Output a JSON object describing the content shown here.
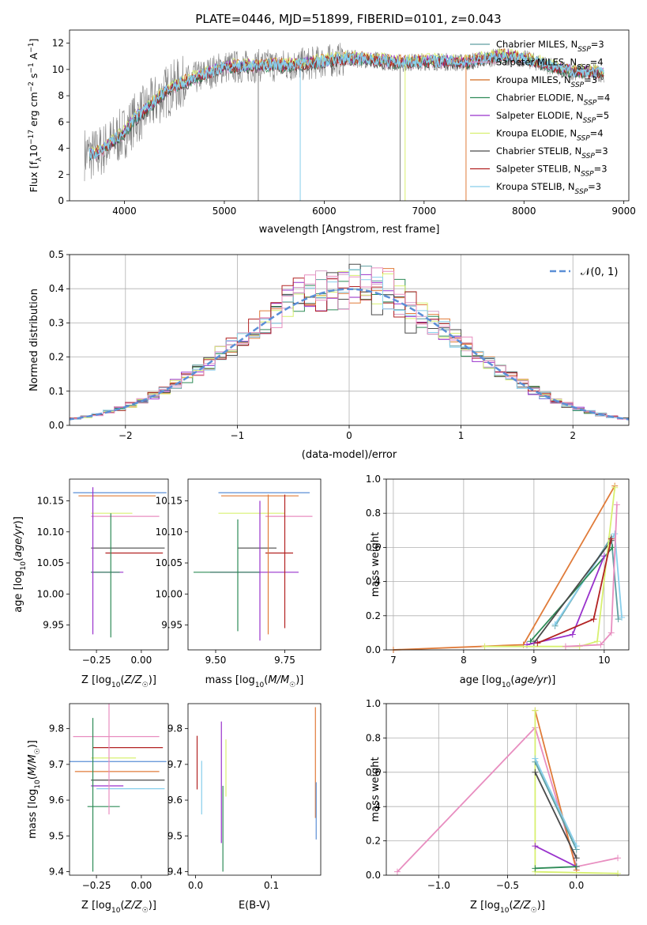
{
  "figure_title": "PLATE=0446, MJD=51899, FIBERID=0101, z=0.043",
  "chart_data": [
    {
      "id": "spectrum",
      "type": "line",
      "title": "PLATE=0446, MJD=51899, FIBERID=0101, z=0.043",
      "xlabel": "wavelength [Angstrom, rest frame]",
      "ylabel": "Flux [f_λ 10^-17 erg cm^-2 s^-1 A^-1]",
      "xlim": [
        3450,
        9050
      ],
      "ylim": [
        0,
        13
      ],
      "xticks": [
        4000,
        5000,
        6000,
        7000,
        8000,
        9000
      ],
      "yticks": [
        0,
        2,
        4,
        6,
        8,
        10,
        12
      ],
      "grid": false,
      "legend_position": "right",
      "data_points": {
        "wavelength": [
          3600,
          3700,
          3800,
          3900,
          4000,
          4100,
          4200,
          4300,
          4400,
          4500,
          4600,
          4700,
          4800,
          4900,
          5000,
          5200,
          5400,
          5600,
          5800,
          6000,
          6200,
          6400,
          6600,
          6800,
          7000,
          7200,
          7400,
          7600,
          7800,
          8000,
          8200,
          8400,
          8600,
          8800
        ],
        "flux": [
          3.6,
          3.5,
          4.0,
          4.6,
          5.2,
          6.2,
          6.8,
          7.5,
          8.2,
          8.7,
          9.0,
          9.3,
          9.6,
          9.9,
          10.2,
          10.2,
          10.3,
          10.3,
          10.4,
          10.6,
          10.8,
          10.8,
          10.6,
          10.5,
          10.6,
          10.6,
          10.5,
          10.8,
          11.0,
          10.8,
          10.4,
          9.9,
          9.8,
          9.7
        ]
      },
      "series": [
        {
          "name": "Chabrier MILES, N_SSP=3",
          "color": "#5f9ea0"
        },
        {
          "name": "Salpeter MILES, N_SSP=4",
          "color": "#d8a0c8"
        },
        {
          "name": "Kroupa MILES, N_SSP=3",
          "color": "#d2691e"
        },
        {
          "name": "Chabrier ELODIE, N_SSP=4",
          "color": "#2e8b57"
        },
        {
          "name": "Salpeter ELODIE, N_SSP=5",
          "color": "#9932cc"
        },
        {
          "name": "Kroupa ELODIE, N_SSP=4",
          "color": "#d8f070"
        },
        {
          "name": "Chabrier STELIB, N_SSP=3",
          "color": "#4a4a4a"
        },
        {
          "name": "Salpeter STELIB, N_SSP=3",
          "color": "#b22222"
        },
        {
          "name": "Kroupa STELIB, N_SSP=3",
          "color": "#87ceeb"
        }
      ]
    },
    {
      "id": "residuals",
      "type": "line",
      "xlabel": "(data-model)/error",
      "ylabel": "Normed distribution",
      "xlim": [
        -2.5,
        2.5
      ],
      "ylim": [
        0,
        0.5
      ],
      "xticks": [
        -2,
        -1,
        0,
        1,
        2
      ],
      "yticks": [
        0.0,
        0.1,
        0.2,
        0.3,
        0.4,
        0.5
      ],
      "grid": true,
      "legend_position": "top-right",
      "gaussian_label": "𝒩(0, 1)",
      "gaussian_color": "#5b8fd6",
      "bin_width": 0.1
    },
    {
      "id": "age-z",
      "type": "scatter",
      "xlabel": "Z [log10(Z/Z☉)]",
      "ylabel": "age [log10(age/yr)]",
      "xlim": [
        -0.4,
        0.15
      ],
      "ylim": [
        9.91,
        10.185
      ],
      "xticks": [
        -0.25,
        0.0
      ],
      "yticks": [
        9.95,
        10.0,
        10.05,
        10.1,
        10.15
      ],
      "points": [
        {
          "x": -0.12,
          "y": 10.163,
          "x0": -0.38,
          "x1": 0.14,
          "y0": 10.163,
          "y1": 10.163,
          "color": "#5b8fd6"
        },
        {
          "x": -0.15,
          "y": 10.158,
          "x0": -0.35,
          "x1": 0.08,
          "y0": 10.158,
          "y1": 10.158,
          "color": "#e07b39"
        },
        {
          "x": -0.2,
          "y": 10.13,
          "x0": -0.28,
          "x1": -0.05,
          "y0": 10.13,
          "y1": 10.13,
          "color": "#d8f070"
        },
        {
          "x": -0.22,
          "y": 10.125,
          "x0": -0.28,
          "x1": 0.1,
          "y0": 10.125,
          "y1": 10.125,
          "color": "#e88ec0"
        },
        {
          "x": -0.1,
          "y": 10.074,
          "x0": -0.28,
          "x1": 0.13,
          "y0": 10.074,
          "y1": 10.074,
          "color": "#4a4a4a"
        },
        {
          "x": -0.08,
          "y": 10.066,
          "x0": -0.2,
          "x1": 0.12,
          "y0": 10.066,
          "y1": 10.066,
          "color": "#b22222"
        },
        {
          "x": -0.23,
          "y": 10.035,
          "x0": -0.28,
          "x1": -0.1,
          "y0": 10.035,
          "y1": 10.035,
          "color": "#9932cc"
        },
        {
          "x": -0.25,
          "y": 10.035,
          "x0": -0.28,
          "x1": -0.12,
          "y0": 10.035,
          "y1": 10.035,
          "color": "#2e8b57"
        },
        {
          "x": -0.27,
          "y": 10.05,
          "x0": -0.27,
          "x1": -0.27,
          "y0": 9.935,
          "y1": 10.172,
          "color": "#9932cc"
        },
        {
          "x": -0.17,
          "y": 10.05,
          "x0": -0.17,
          "x1": -0.17,
          "y0": 9.93,
          "y1": 10.13,
          "color": "#2e8b57"
        }
      ]
    },
    {
      "id": "age-mass",
      "type": "scatter",
      "xlabel": "mass [log10(M/M☉)]",
      "ylabel": "",
      "xlim": [
        9.4,
        9.88
      ],
      "ylim": [
        9.91,
        10.185
      ],
      "xticks": [
        9.5,
        9.75
      ],
      "yticks": [
        9.95,
        10.0,
        10.05,
        10.1,
        10.15
      ],
      "points": [
        {
          "x": 9.7,
          "y": 10.163,
          "x0": 9.51,
          "x1": 9.84,
          "y0": 10.163,
          "y1": 10.163,
          "color": "#5b8fd6"
        },
        {
          "x": 9.68,
          "y": 10.158,
          "x0": 9.52,
          "x1": 9.8,
          "y0": 10.158,
          "y1": 10.158,
          "color": "#e07b39"
        },
        {
          "x": 9.62,
          "y": 10.13,
          "x0": 9.51,
          "x1": 9.75,
          "y0": 10.13,
          "y1": 10.13,
          "color": "#d8f070"
        },
        {
          "x": 9.75,
          "y": 10.125,
          "x0": 9.68,
          "x1": 9.85,
          "y0": 10.125,
          "y1": 10.125,
          "color": "#e88ec0"
        },
        {
          "x": 9.66,
          "y": 10.074,
          "x0": 9.58,
          "x1": 9.72,
          "y0": 10.074,
          "y1": 10.074,
          "color": "#4a4a4a"
        },
        {
          "x": 9.72,
          "y": 10.066,
          "x0": 9.68,
          "x1": 9.78,
          "y0": 10.066,
          "y1": 10.066,
          "color": "#b22222"
        },
        {
          "x": 9.6,
          "y": 10.035,
          "x0": 9.48,
          "x1": 9.8,
          "y0": 10.035,
          "y1": 10.035,
          "color": "#9932cc"
        },
        {
          "x": 9.55,
          "y": 10.035,
          "x0": 9.42,
          "x1": 9.66,
          "y0": 10.035,
          "y1": 10.035,
          "color": "#2e8b57"
        },
        {
          "x": 9.66,
          "y": 10.05,
          "x0": 9.66,
          "x1": 9.66,
          "y0": 9.925,
          "y1": 10.15,
          "color": "#9932cc"
        },
        {
          "x": 9.69,
          "y": 10.05,
          "x0": 9.69,
          "x1": 9.69,
          "y0": 9.935,
          "y1": 10.16,
          "color": "#e07b39"
        },
        {
          "x": 9.58,
          "y": 10.05,
          "x0": 9.58,
          "x1": 9.58,
          "y0": 9.94,
          "y1": 10.12,
          "color": "#2e8b57"
        },
        {
          "x": 9.75,
          "y": 10.05,
          "x0": 9.75,
          "x1": 9.75,
          "y0": 9.945,
          "y1": 10.16,
          "color": "#b22222"
        }
      ]
    },
    {
      "id": "mw-age",
      "type": "line",
      "xlabel": "age [log10(age/yr)]",
      "ylabel": "mass weight",
      "xlim": [
        6.9,
        10.35
      ],
      "ylim": [
        0,
        1.0
      ],
      "xticks": [
        7,
        8,
        9,
        10
      ],
      "yticks": [
        0.0,
        0.2,
        0.4,
        0.6,
        0.8,
        1.0
      ],
      "grid": true,
      "series": [
        {
          "color": "#e07b39",
          "points": [
            [
              7.0,
              0.0
            ],
            [
              8.85,
              0.03
            ],
            [
              10.15,
              0.96
            ]
          ]
        },
        {
          "color": "#5f9ea0",
          "points": [
            [
              9.3,
              0.14
            ],
            [
              10.1,
              0.66
            ],
            [
              10.2,
              0.18
            ]
          ]
        },
        {
          "color": "#87ceeb",
          "points": [
            [
              9.3,
              0.15
            ],
            [
              10.15,
              0.68
            ],
            [
              10.25,
              0.19
            ]
          ]
        },
        {
          "color": "#2e8b57",
          "points": [
            [
              8.95,
              0.05
            ],
            [
              10.12,
              0.6
            ]
          ]
        },
        {
          "color": "#4a4a4a",
          "points": [
            [
              9.0,
              0.04
            ],
            [
              10.1,
              0.64
            ]
          ]
        },
        {
          "color": "#9932cc",
          "points": [
            [
              8.9,
              0.03
            ],
            [
              9.55,
              0.09
            ],
            [
              10.0,
              0.55
            ]
          ]
        },
        {
          "color": "#d8f070",
          "points": [
            [
              8.3,
              0.02
            ],
            [
              9.65,
              0.02
            ],
            [
              9.9,
              0.05
            ],
            [
              10.15,
              0.95
            ]
          ]
        },
        {
          "color": "#e88ec0",
          "points": [
            [
              9.45,
              0.02
            ],
            [
              9.95,
              0.03
            ],
            [
              10.1,
              0.1
            ],
            [
              10.18,
              0.85
            ]
          ]
        },
        {
          "color": "#b22222",
          "points": [
            [
              9.05,
              0.04
            ],
            [
              9.85,
              0.18
            ],
            [
              10.1,
              0.65
            ]
          ]
        }
      ]
    },
    {
      "id": "mass-z",
      "type": "scatter",
      "xlabel": "Z [log10(Z/Z☉)]",
      "ylabel": "mass [log10(M/M☉)]",
      "xlim": [
        -0.4,
        0.15
      ],
      "ylim": [
        9.39,
        9.87
      ],
      "xticks": [
        -0.25,
        0.0
      ],
      "yticks": [
        9.4,
        9.5,
        9.6,
        9.7,
        9.8
      ],
      "points": [
        {
          "x": -0.15,
          "y": 9.778,
          "x0": -0.38,
          "x1": 0.1,
          "y0": 9.778,
          "y1": 9.778,
          "color": "#e88ec0"
        },
        {
          "x": -0.07,
          "y": 9.747,
          "x0": -0.27,
          "x1": 0.12,
          "y0": 9.747,
          "y1": 9.747,
          "color": "#b22222"
        },
        {
          "x": -0.2,
          "y": 9.718,
          "x0": -0.28,
          "x1": -0.03,
          "y0": 9.718,
          "y1": 9.718,
          "color": "#d8f070"
        },
        {
          "x": -0.13,
          "y": 9.708,
          "x0": -0.4,
          "x1": 0.14,
          "y0": 9.708,
          "y1": 9.708,
          "color": "#5b8fd6"
        },
        {
          "x": -0.15,
          "y": 9.68,
          "x0": -0.37,
          "x1": 0.1,
          "y0": 9.68,
          "y1": 9.68,
          "color": "#e07b39"
        },
        {
          "x": -0.13,
          "y": 9.656,
          "x0": -0.28,
          "x1": 0.13,
          "y0": 9.656,
          "y1": 9.656,
          "color": "#4a4a4a"
        },
        {
          "x": -0.22,
          "y": 9.64,
          "x0": -0.28,
          "x1": -0.1,
          "y0": 9.64,
          "y1": 9.64,
          "color": "#9932cc"
        },
        {
          "x": -0.1,
          "y": 9.632,
          "x0": -0.25,
          "x1": 0.13,
          "y0": 9.632,
          "y1": 9.632,
          "color": "#87ceeb"
        },
        {
          "x": -0.24,
          "y": 9.582,
          "x0": -0.3,
          "x1": -0.12,
          "y0": 9.582,
          "y1": 9.582,
          "color": "#2e8b57"
        },
        {
          "x": -0.27,
          "y": 9.6,
          "x0": -0.27,
          "x1": -0.27,
          "y0": 9.4,
          "y1": 9.83,
          "color": "#2e8b57"
        },
        {
          "x": -0.18,
          "y": 9.65,
          "x0": -0.18,
          "x1": -0.18,
          "y0": 9.56,
          "y1": 9.87,
          "color": "#e88ec0"
        }
      ]
    },
    {
      "id": "mass-ebv",
      "type": "scatter",
      "xlabel": "E(B-V)",
      "ylabel": "",
      "xlim": [
        -0.01,
        0.165
      ],
      "ylim": [
        9.39,
        9.87
      ],
      "xticks": [
        0.0,
        0.1
      ],
      "yticks": [
        9.4,
        9.5,
        9.6,
        9.7,
        9.8
      ],
      "points": [
        {
          "x": 0.002,
          "y": 9.7,
          "x0": 0.002,
          "x1": 0.002,
          "y0": 9.63,
          "y1": 9.78,
          "color": "#b22222"
        },
        {
          "x": 0.008,
          "y": 9.65,
          "x0": 0.008,
          "x1": 0.008,
          "y0": 9.56,
          "y1": 9.71,
          "color": "#87ceeb"
        },
        {
          "x": 0.034,
          "y": 9.65,
          "x0": 0.034,
          "x1": 0.034,
          "y0": 9.48,
          "y1": 9.82,
          "color": "#9932cc"
        },
        {
          "x": 0.036,
          "y": 9.55,
          "x0": 0.036,
          "x1": 0.036,
          "y0": 9.4,
          "y1": 9.64,
          "color": "#2e8b57"
        },
        {
          "x": 0.04,
          "y": 9.7,
          "x0": 0.04,
          "x1": 0.04,
          "y0": 9.61,
          "y1": 9.77,
          "color": "#d8f070"
        },
        {
          "x": 0.158,
          "y": 9.7,
          "x0": 0.158,
          "x1": 0.158,
          "y0": 9.55,
          "y1": 9.86,
          "color": "#e07b39"
        },
        {
          "x": 0.159,
          "y": 9.55,
          "x0": 0.159,
          "x1": 0.159,
          "y0": 9.49,
          "y1": 9.65,
          "color": "#5b8fd6"
        }
      ]
    },
    {
      "id": "mw-z",
      "type": "line",
      "xlabel": "Z [log10(Z/Z☉)]",
      "ylabel": "mass weight",
      "xlim": [
        -1.38,
        0.38
      ],
      "ylim": [
        0,
        1.0
      ],
      "xticks": [
        -1.0,
        -0.5,
        0.0
      ],
      "yticks": [
        0.0,
        0.2,
        0.4,
        0.6,
        0.8,
        1.0
      ],
      "grid": true,
      "series": [
        {
          "color": "#e88ec0",
          "points": [
            [
              -1.3,
              0.02
            ],
            [
              -0.3,
              0.86
            ],
            [
              0.0,
              0.05
            ],
            [
              0.3,
              0.1
            ]
          ]
        },
        {
          "color": "#e07b39",
          "points": [
            [
              -0.3,
              0.96
            ],
            [
              0.0,
              0.03
            ]
          ]
        },
        {
          "color": "#d8f070",
          "points": [
            [
              -0.3,
              0.96
            ],
            [
              -0.3,
              0.02
            ],
            [
              0.3,
              0.01
            ]
          ]
        },
        {
          "color": "#5f9ea0",
          "points": [
            [
              -0.3,
              0.66
            ],
            [
              0.0,
              0.15
            ]
          ]
        },
        {
          "color": "#87ceeb",
          "points": [
            [
              -0.3,
              0.68
            ],
            [
              0.0,
              0.17
            ]
          ]
        },
        {
          "color": "#9932cc",
          "points": [
            [
              -0.3,
              0.17
            ],
            [
              0.0,
              0.05
            ]
          ]
        },
        {
          "color": "#2e8b57",
          "points": [
            [
              -0.3,
              0.04
            ],
            [
              0.0,
              0.05
            ]
          ]
        },
        {
          "color": "#4a4a4a",
          "points": [
            [
              -0.3,
              0.6
            ],
            [
              0.0,
              0.1
            ]
          ]
        }
      ]
    }
  ]
}
